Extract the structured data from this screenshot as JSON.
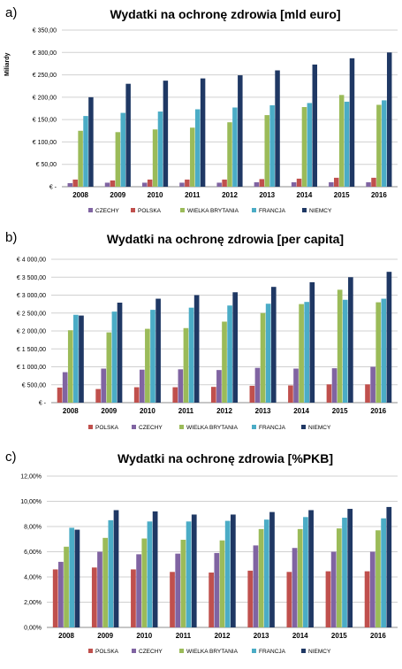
{
  "panels": [
    {
      "label": "a)",
      "chart_data": {
        "type": "bar",
        "title": "Wydatki na ochronę zdrowia [mld euro]",
        "ylabel": "Miliardy",
        "xlabel": "",
        "categories": [
          "2008",
          "2009",
          "2010",
          "2011",
          "2012",
          "2013",
          "2014",
          "2015",
          "2016"
        ],
        "ylim": [
          0,
          350
        ],
        "yticks": [
          0,
          50,
          100,
          150,
          200,
          250,
          300,
          350
        ],
        "ytick_labels": [
          "€ -",
          "€ 50,00",
          "€ 100,00",
          "€ 150,00",
          "€ 200,00",
          "€ 250,00",
          "€ 300,00",
          "€ 350,00"
        ],
        "grid": true,
        "legend_position": "bottom",
        "series": [
          {
            "name": "CZECHY",
            "color": "#8064a2",
            "values": [
              8,
              9,
              9,
              9,
              9,
              10,
              10,
              10,
              10
            ]
          },
          {
            "name": "POLSKA",
            "color": "#c0504d",
            "values": [
              16,
              14,
              16,
              16,
              16,
              17,
              18,
              20,
              20
            ]
          },
          {
            "name": "WIELKA BRYTANIA",
            "color": "#9bbb59",
            "values": [
              125,
              122,
              128,
              132,
              144,
              160,
              178,
              205,
              183
            ]
          },
          {
            "name": "FRANCJA",
            "color": "#4bacc6",
            "values": [
              158,
              165,
              168,
              173,
              177,
              182,
              187,
              190,
              193
            ]
          },
          {
            "name": "NIEMCY",
            "color": "#1f3864",
            "values": [
              200,
              230,
              237,
              242,
              249,
              260,
              273,
              287,
              300
            ]
          }
        ]
      }
    },
    {
      "label": "b)",
      "chart_data": {
        "type": "bar",
        "title": "Wydatki na ochronę zdrowia [per capita]",
        "xlabel": "",
        "ylabel": "",
        "categories": [
          "2008",
          "2009",
          "2010",
          "2011",
          "2012",
          "2013",
          "2014",
          "2015",
          "2016"
        ],
        "ylim": [
          0,
          4000
        ],
        "yticks": [
          0,
          500,
          1000,
          1500,
          2000,
          2500,
          3000,
          3500,
          4000
        ],
        "ytick_labels": [
          "€ -",
          "€ 500,00",
          "€ 1 000,00",
          "€ 1 500,00",
          "€ 2 000,00",
          "€ 2 500,00",
          "€ 3 000,00",
          "€ 3 500,00",
          "€ 4 000,00"
        ],
        "grid": true,
        "legend_position": "bottom",
        "series": [
          {
            "name": "POLSKA",
            "color": "#c0504d",
            "values": [
              420,
              380,
              430,
              430,
              440,
              470,
              480,
              510,
              510
            ]
          },
          {
            "name": "CZECHY",
            "color": "#8064a2",
            "values": [
              850,
              950,
              920,
              930,
              910,
              970,
              950,
              960,
              1000
            ]
          },
          {
            "name": "WIELKA BRYTANIA",
            "color": "#9bbb59",
            "values": [
              2020,
              1960,
              2060,
              2080,
              2260,
              2500,
              2750,
              3150,
              2800
            ]
          },
          {
            "name": "FRANCJA",
            "color": "#4bacc6",
            "values": [
              2450,
              2540,
              2590,
              2650,
              2710,
              2760,
              2810,
              2870,
              2900
            ]
          },
          {
            "name": "NIEMCY",
            "color": "#1f3864",
            "values": [
              2430,
              2790,
              2900,
              3000,
              3080,
              3230,
              3360,
              3500,
              3650
            ]
          }
        ]
      }
    },
    {
      "label": "c)",
      "chart_data": {
        "type": "bar",
        "title": "Wydatki na ochronę zdrowia [%PKB]",
        "xlabel": "",
        "ylabel": "",
        "categories": [
          "2008",
          "2009",
          "2010",
          "2011",
          "2012",
          "2013",
          "2014",
          "2015",
          "2016"
        ],
        "ylim": [
          0,
          12
        ],
        "yticks": [
          0,
          2,
          4,
          6,
          8,
          10,
          12
        ],
        "ytick_labels": [
          "0,00%",
          "2,00%",
          "4,00%",
          "6,00%",
          "8,00%",
          "10,00%",
          "12,00%"
        ],
        "grid": true,
        "legend_position": "bottom",
        "series": [
          {
            "name": "POLSKA",
            "color": "#c0504d",
            "values": [
              4.6,
              4.75,
              4.6,
              4.4,
              4.35,
              4.5,
              4.4,
              4.45,
              4.45
            ]
          },
          {
            "name": "CZECHY",
            "color": "#8064a2",
            "values": [
              5.2,
              6.0,
              5.8,
              5.85,
              5.9,
              6.5,
              6.3,
              6.0,
              6.0
            ]
          },
          {
            "name": "WIELKA BRYTANIA",
            "color": "#9bbb59",
            "values": [
              6.4,
              7.1,
              7.05,
              6.95,
              6.9,
              7.8,
              7.8,
              7.85,
              7.7
            ]
          },
          {
            "name": "FRANCJA",
            "color": "#4bacc6",
            "values": [
              7.9,
              8.5,
              8.4,
              8.4,
              8.45,
              8.55,
              8.75,
              8.7,
              8.65
            ]
          },
          {
            "name": "NIEMCY",
            "color": "#1f3864",
            "values": [
              7.75,
              9.3,
              9.2,
              8.95,
              8.95,
              9.15,
              9.3,
              9.4,
              9.55
            ]
          }
        ]
      }
    }
  ]
}
